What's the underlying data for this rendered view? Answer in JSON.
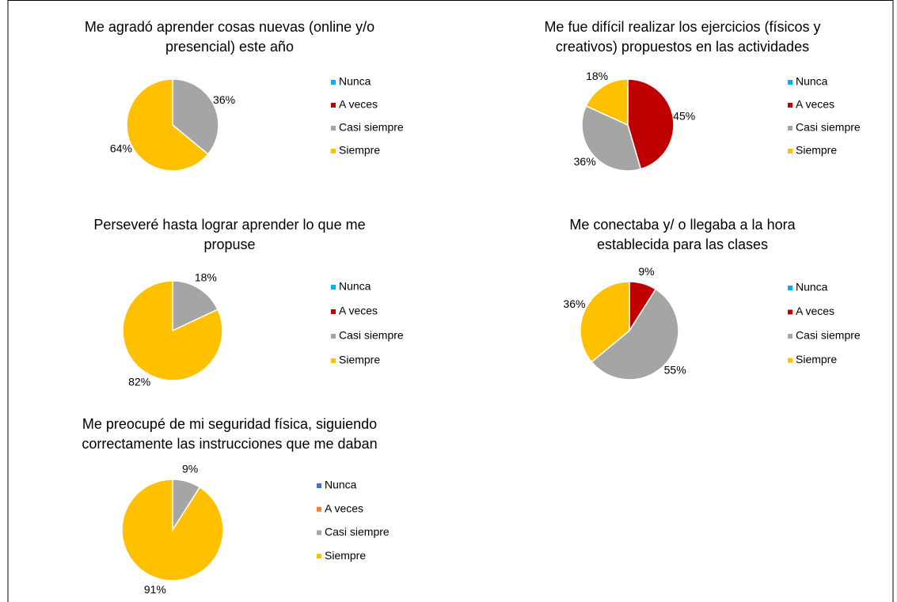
{
  "chart_data": [
    {
      "type": "pie",
      "title": [
        "Me agradó aprender cosas nuevas (online y/o",
        "presencial) este año"
      ],
      "categories": [
        "Nunca",
        "A veces",
        "Casi siempre",
        "Siempre"
      ],
      "colors": [
        "#00b0f0",
        "#c00000",
        "#a5a5a5",
        "#ffc000"
      ],
      "values": [
        0,
        0,
        36,
        64
      ],
      "value_labels": [
        null,
        null,
        "36%",
        "64%"
      ]
    },
    {
      "type": "pie",
      "title": [
        "Me fue difícil realizar los ejercicios (físicos y",
        "creativos) propuestos en las actividades"
      ],
      "categories": [
        "Nunca",
        "A veces",
        "Casi siempre",
        "Siempre"
      ],
      "colors": [
        "#00b0f0",
        "#c00000",
        "#a5a5a5",
        "#ffc000"
      ],
      "values": [
        0,
        45,
        36,
        18
      ],
      "value_labels": [
        null,
        "45%",
        "36%",
        "18%"
      ]
    },
    {
      "type": "pie",
      "title": [
        "Perseveré hasta lograr aprender lo que me",
        "propuse"
      ],
      "categories": [
        "Nunca",
        "A veces",
        "Casi siempre",
        "Siempre"
      ],
      "colors": [
        "#00b0f0",
        "#c00000",
        "#a5a5a5",
        "#ffc000"
      ],
      "values": [
        0,
        0,
        18,
        82
      ],
      "value_labels": [
        null,
        null,
        "18%",
        "82%"
      ]
    },
    {
      "type": "pie",
      "title": [
        "Me conectaba y/ o llegaba a la hora",
        "establecida para las clases"
      ],
      "categories": [
        "Nunca",
        "A veces",
        "Casi siempre",
        "Siempre"
      ],
      "colors": [
        "#00b0f0",
        "#c00000",
        "#a5a5a5",
        "#ffc000"
      ],
      "values": [
        0,
        9,
        55,
        36
      ],
      "value_labels": [
        null,
        "9%",
        "55%",
        "36%"
      ]
    },
    {
      "type": "pie",
      "title": [
        "Me preocupé de mi seguridad física, siguiendo",
        "correctamente las instrucciones que me daban"
      ],
      "categories": [
        "Nunca",
        "A veces",
        "Casi siempre",
        "Siempre"
      ],
      "colors": [
        "#4472c4",
        "#ed7d31",
        "#a5a5a5",
        "#ffc000"
      ],
      "values": [
        0,
        0,
        9,
        91
      ],
      "value_labels": [
        null,
        null,
        "9%",
        "91%"
      ]
    }
  ]
}
